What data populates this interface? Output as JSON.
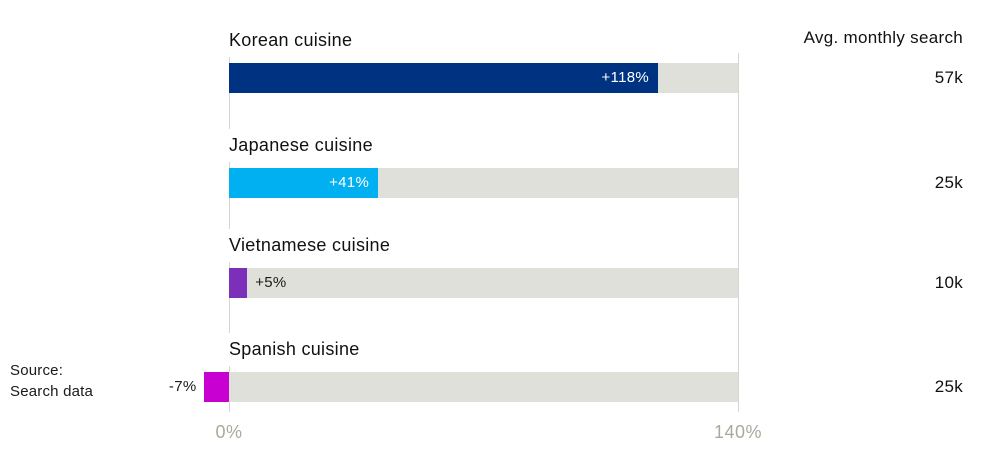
{
  "chart_data": {
    "type": "bar",
    "orientation": "horizontal",
    "x_axis": {
      "min": 0,
      "max": 140,
      "tick_labels": [
        "0%",
        "140%"
      ],
      "unit": "%"
    },
    "right_column_header": "Avg. monthly search",
    "source_line1": "Source:",
    "source_line2": "Search data",
    "rows": [
      {
        "label": "Korean cuisine",
        "change_pct": 118,
        "change_label": "+118%",
        "avg_search": "57k",
        "color": "#003282"
      },
      {
        "label": "Japanese cuisine",
        "change_pct": 41,
        "change_label": "+41%",
        "avg_search": "25k",
        "color": "#00b0f0"
      },
      {
        "label": "Vietnamese cuisine",
        "change_pct": 5,
        "change_label": "+5%",
        "avg_search": "10k",
        "color": "#7c2fb8"
      },
      {
        "label": "Spanish cuisine",
        "change_pct": -7,
        "change_label": "-7%",
        "avg_search": "25k",
        "color": "#c800d2"
      }
    ],
    "legend": "none",
    "grid": "vertical-lines-at-ticks",
    "colors": {
      "track": "#e0e0da",
      "gridline": "#d6d6d0",
      "axis_text": "#a9aa9c",
      "label_text": "#111111",
      "value_text_inside": "#ffffff"
    }
  }
}
